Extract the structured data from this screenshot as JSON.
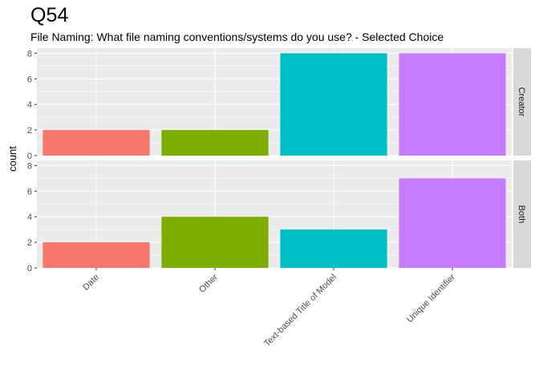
{
  "chart_data": {
    "type": "bar",
    "title": "Q54",
    "subtitle": "File Naming: What file naming conventions/systems do you use? - Selected Choice",
    "xlabel": "",
    "ylabel": "count",
    "categories": [
      "Date",
      "Other",
      "Text-based Title of Model",
      "Unique Identifier"
    ],
    "colors": [
      "#F8766D",
      "#7CAE00",
      "#00BFC4",
      "#C77CFF"
    ],
    "ylim": [
      0,
      8.4
    ],
    "yticks": [
      0,
      2,
      4,
      6,
      8
    ],
    "grid": true,
    "panel_background": "#EBEBEB",
    "strip_background": "#D9D9D9",
    "facets": [
      {
        "name": "Creator",
        "values": [
          2,
          2,
          8,
          8
        ]
      },
      {
        "name": "Both",
        "values": [
          2,
          4,
          3,
          7
        ]
      }
    ]
  }
}
